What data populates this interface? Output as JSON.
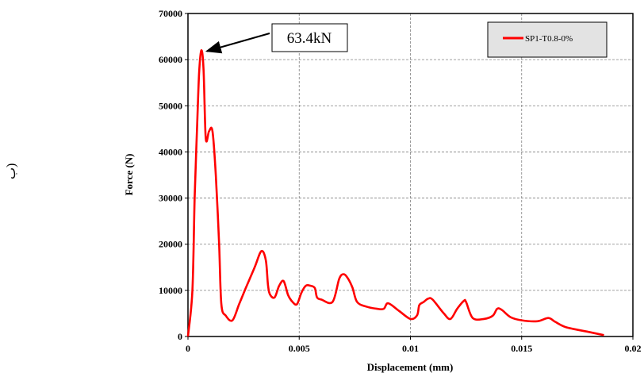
{
  "side_mark": "ب)",
  "chart_data": {
    "type": "line",
    "title": "",
    "xlabel": "Displacement  (mm)",
    "ylabel": "Force (N)",
    "xlim": [
      0,
      0.02
    ],
    "ylim": [
      0,
      70000
    ],
    "x_ticks": [
      0,
      0.005,
      0.01,
      0.015,
      0.02
    ],
    "x_tick_labels": [
      "0",
      "0.005",
      "0.01",
      "0.015",
      "0.02"
    ],
    "y_ticks": [
      0,
      10000,
      20000,
      30000,
      40000,
      50000,
      60000,
      70000
    ],
    "y_tick_labels": [
      "0",
      "10000",
      "20000",
      "30000",
      "40000",
      "50000",
      "60000",
      "70000"
    ],
    "grid": true,
    "legend_position": "top-right",
    "series": [
      {
        "name": "SP1-T0.8-0%",
        "color": "#ff0000",
        "x": [
          0,
          0.0002,
          0.0003,
          0.0004,
          0.0005,
          0.0006,
          0.0007,
          0.0008,
          0.00095,
          0.0011,
          0.00125,
          0.0014,
          0.0015,
          0.0017,
          0.002,
          0.0023,
          0.0026,
          0.003,
          0.0033,
          0.0035,
          0.0036,
          0.0037,
          0.0039,
          0.0041,
          0.0043,
          0.0045,
          0.0047,
          0.0049,
          0.0051,
          0.0053,
          0.0055,
          0.0057,
          0.0058,
          0.006,
          0.0065,
          0.0068,
          0.007,
          0.0072,
          0.0074,
          0.0076,
          0.008,
          0.0085,
          0.0088,
          0.009,
          0.0095,
          0.01,
          0.0103,
          0.0104,
          0.0106,
          0.0108,
          0.011,
          0.0115,
          0.0118,
          0.0121,
          0.0124,
          0.0125,
          0.0128,
          0.0133,
          0.0137,
          0.0139,
          0.0141,
          0.0145,
          0.015,
          0.0157,
          0.0162,
          0.0165,
          0.017,
          0.018,
          0.0187
        ],
        "y": [
          0,
          10000,
          30000,
          44000,
          57000,
          62000,
          58000,
          43000,
          44500,
          44500,
          35000,
          20000,
          7000,
          4500,
          3500,
          7000,
          10500,
          15000,
          18500,
          16500,
          11000,
          9000,
          8500,
          11000,
          12000,
          9000,
          7500,
          7000,
          9500,
          11000,
          11000,
          10500,
          8500,
          8000,
          7500,
          12500,
          13500,
          12500,
          10500,
          7500,
          6500,
          6000,
          6000,
          7200,
          5500,
          3800,
          4600,
          6800,
          7500,
          8200,
          8000,
          5000,
          3800,
          6000,
          7700,
          7500,
          4000,
          3800,
          4500,
          6000,
          5800,
          4200,
          3500,
          3300,
          4000,
          3200,
          2000,
          1000,
          300
        ]
      }
    ],
    "annotation": {
      "text": "63.4kN",
      "point": [
        0.0006,
        62000
      ]
    }
  }
}
